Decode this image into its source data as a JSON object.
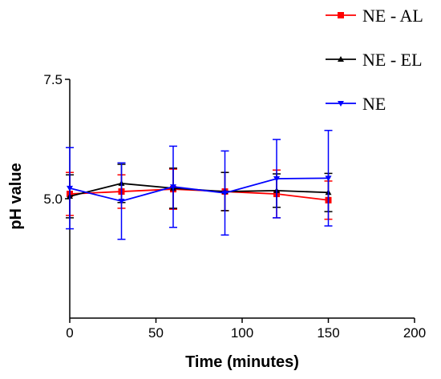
{
  "chart_data": {
    "type": "line",
    "xlabel": "Time (minutes)",
    "ylabel": "pH value",
    "xlim": [
      0,
      200
    ],
    "ylim": [
      2.5,
      7.5
    ],
    "x_ticks": [
      0,
      50,
      100,
      150,
      200
    ],
    "y_ticks": [
      5.0,
      7.5
    ],
    "y_tick_labels": [
      "5.0",
      "7.5"
    ],
    "legend_position": "top-right",
    "grid": false,
    "series": [
      {
        "name": "NE - AL",
        "color": "#ff0000",
        "marker": "square",
        "x": [
          0,
          30,
          60,
          90,
          120,
          150
        ],
        "y": [
          5.1,
          5.15,
          5.2,
          5.15,
          5.1,
          4.97
        ],
        "err": [
          0.45,
          0.35,
          0.42,
          0.4,
          0.5,
          0.4
        ]
      },
      {
        "name": "NE - EL",
        "color": "#000000",
        "marker": "triangle-up",
        "x": [
          0,
          30,
          60,
          90,
          120,
          150
        ],
        "y": [
          5.05,
          5.32,
          5.22,
          5.15,
          5.17,
          5.13
        ],
        "err": [
          0.45,
          0.4,
          0.42,
          0.4,
          0.35,
          0.4
        ]
      },
      {
        "name": "NE",
        "color": "#0000ff",
        "marker": "triangle-down",
        "x": [
          0,
          30,
          60,
          90,
          120,
          150
        ],
        "y": [
          5.22,
          4.95,
          5.25,
          5.12,
          5.42,
          5.43
        ],
        "err": [
          0.85,
          0.8,
          0.85,
          0.88,
          0.82,
          1.0
        ]
      }
    ]
  }
}
